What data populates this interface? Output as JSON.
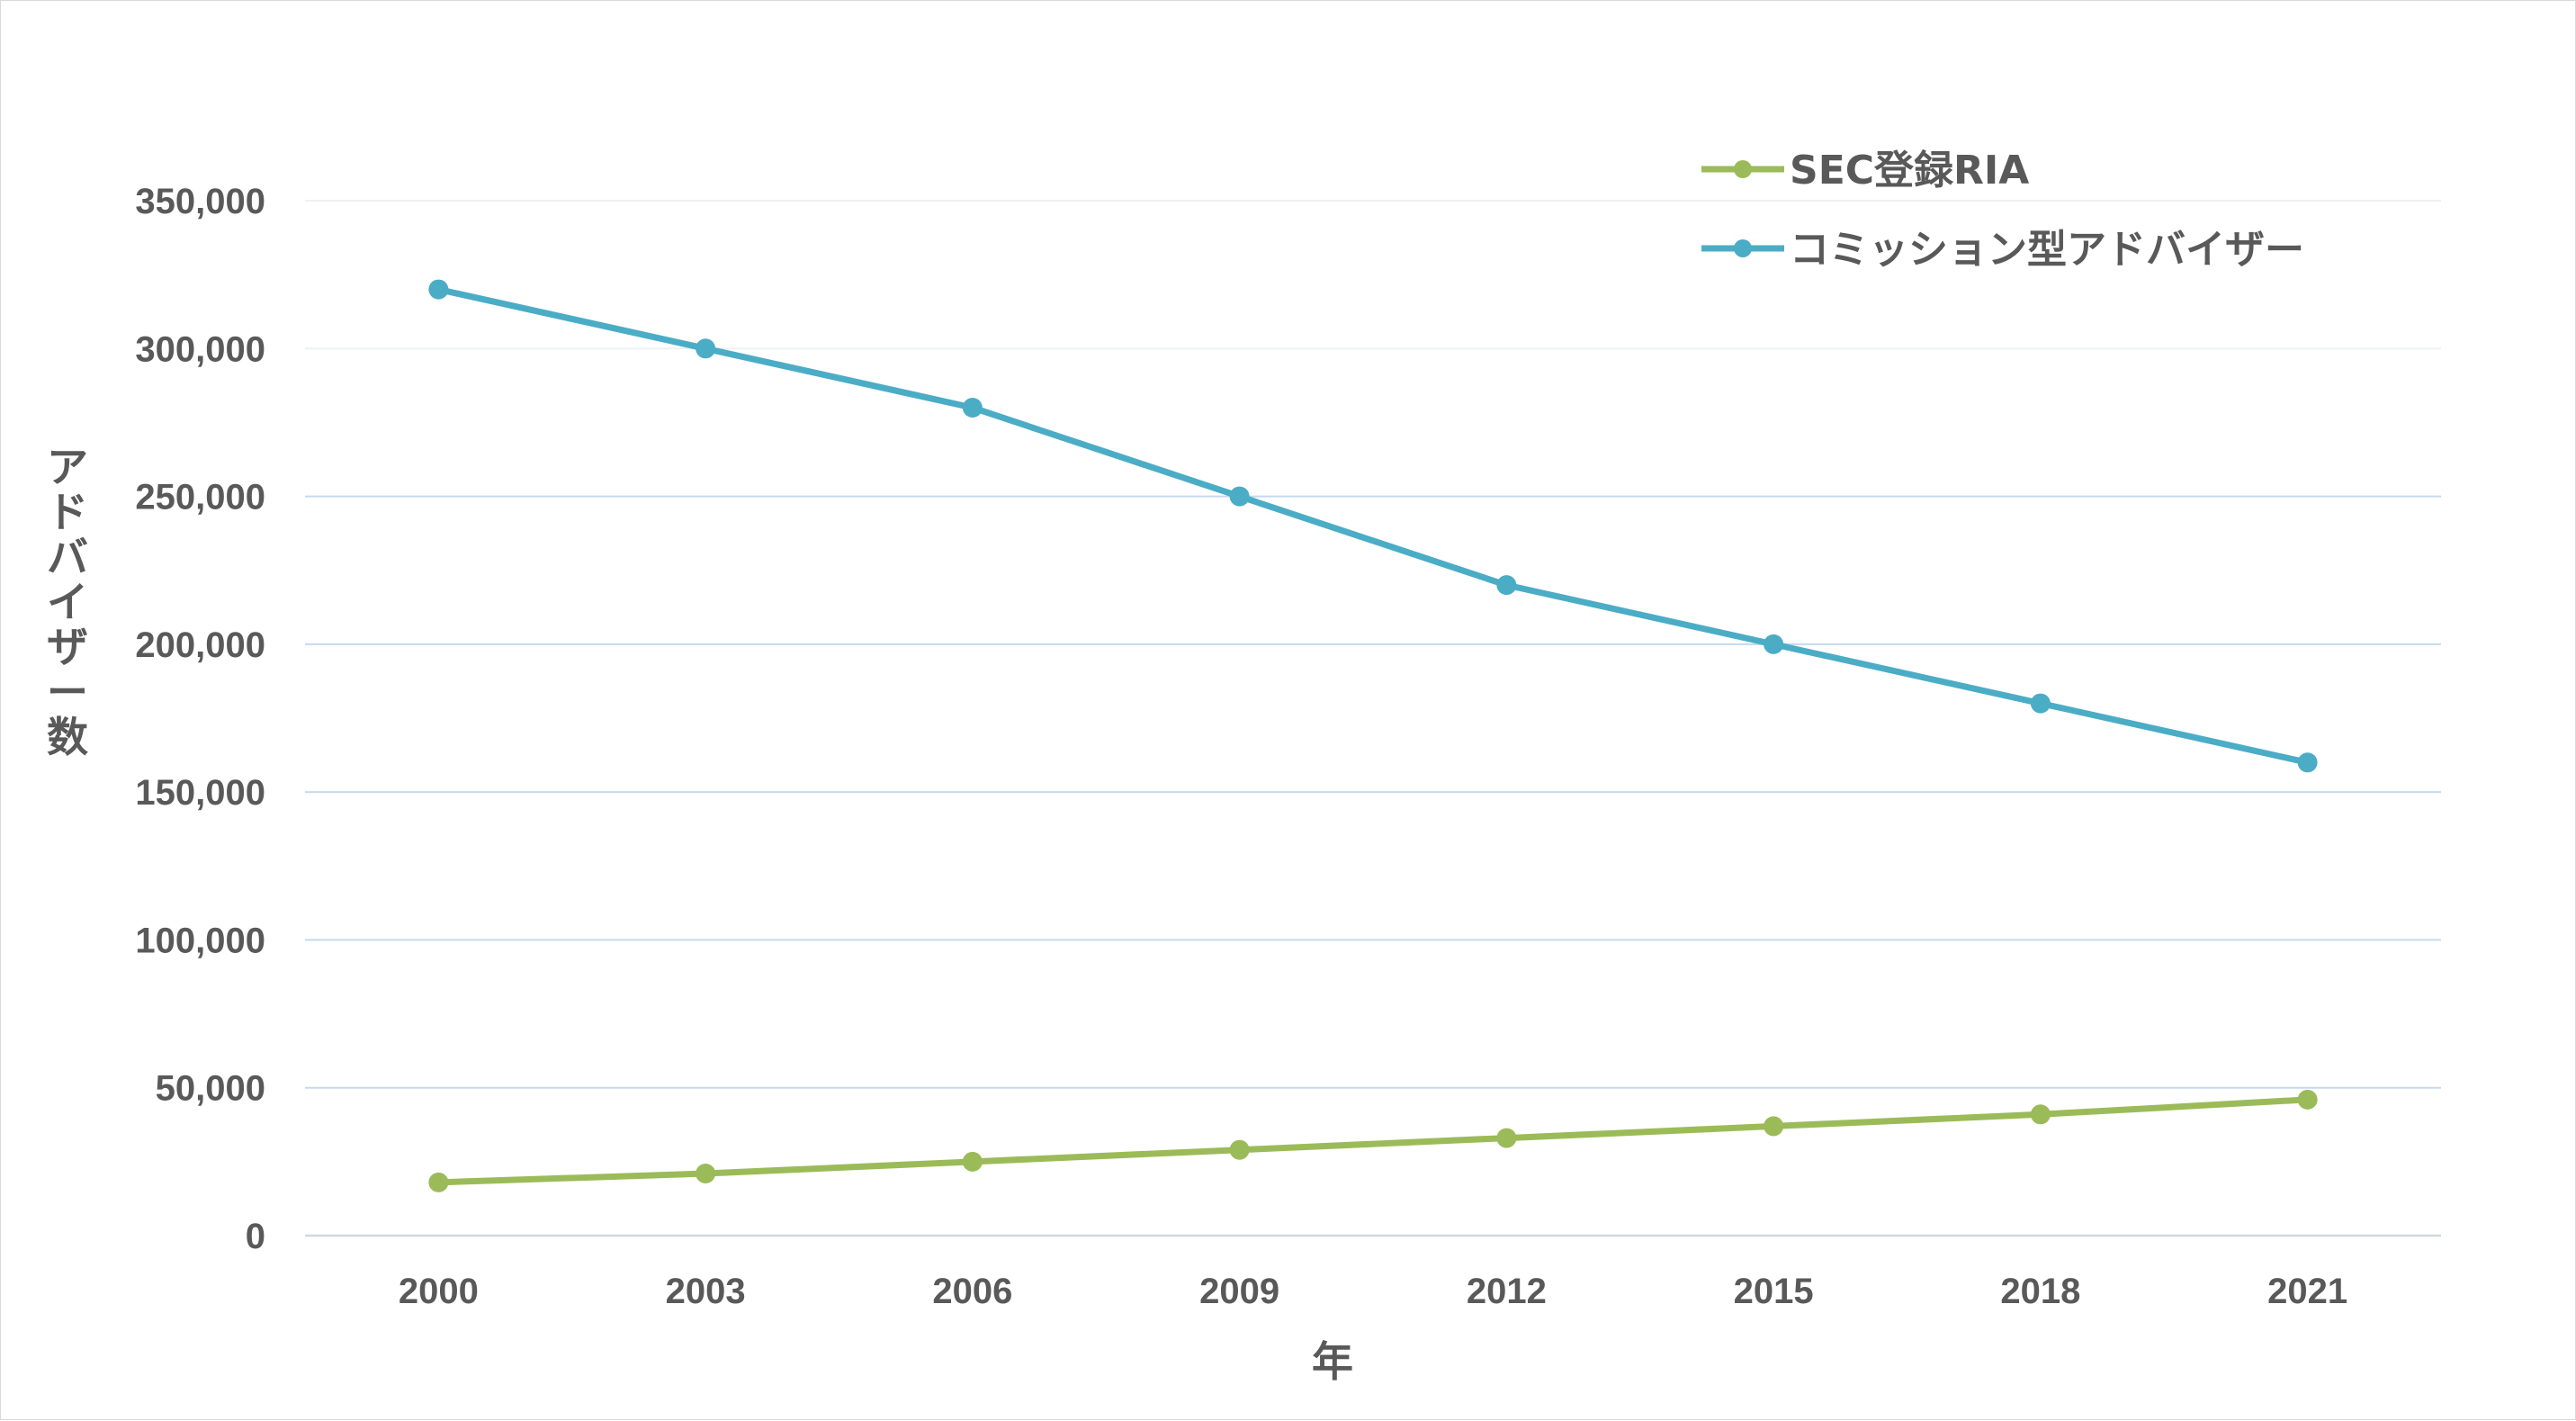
{
  "chart_data": {
    "type": "line",
    "xlabel": "年",
    "ylabel": "アドバイザー数",
    "categories": [
      "2000",
      "2003",
      "2006",
      "2009",
      "2012",
      "2015",
      "2018",
      "2021"
    ],
    "ylim": [
      0,
      350000
    ],
    "y_ticks": [
      0,
      50000,
      100000,
      150000,
      200000,
      250000,
      300000,
      350000
    ],
    "y_tick_labels": [
      "0",
      "50,000",
      "100,000",
      "150,000",
      "200,000",
      "250,000",
      "300,000",
      "350,000"
    ],
    "grid": true,
    "legend_position": "top-right",
    "series": [
      {
        "name": "SEC登録RIA",
        "color": "#9bbb59",
        "values": [
          18000,
          21000,
          25000,
          29000,
          33000,
          37000,
          41000,
          46000
        ]
      },
      {
        "name": "コミッション型アドバイザー",
        "color": "#4bacc6",
        "values": [
          320000,
          300000,
          280000,
          250000,
          220000,
          200000,
          180000,
          160000
        ]
      }
    ]
  }
}
